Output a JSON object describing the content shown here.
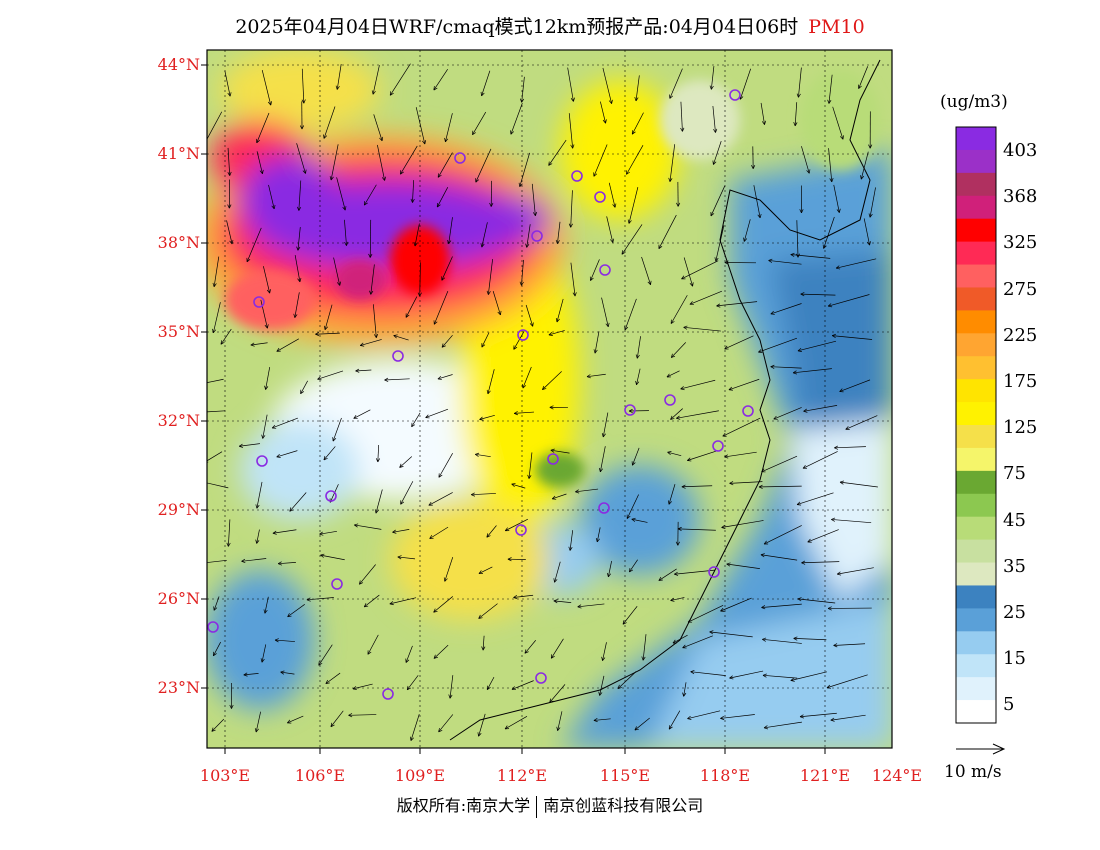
{
  "title": {
    "main": "2025年04月04日WRF/cmaq模式12km预报产品:04月04日06时",
    "pollutant": "PM10"
  },
  "axes": {
    "lat_labels": [
      "44°N",
      "41°N",
      "38°N",
      "35°N",
      "32°N",
      "29°N",
      "26°N",
      "23°N"
    ],
    "lon_labels": [
      "103°E",
      "106°E",
      "109°E",
      "112°E",
      "115°E",
      "118°E",
      "121°E",
      "124°E"
    ]
  },
  "colorbar": {
    "unit": "(ug/m3)",
    "labels": [
      "403",
      "368",
      "325",
      "275",
      "225",
      "175",
      "125",
      "75",
      "45",
      "35",
      "25",
      "15",
      "5"
    ],
    "colors": [
      "#8a2be2",
      "#9b30c8",
      "#b03060",
      "#d0207a",
      "#ff0000",
      "#ff2a55",
      "#ff6060",
      "#f05a28",
      "#ff8c00",
      "#ffa531",
      "#ffc030",
      "#ffe400",
      "#fff200",
      "#f5e04a",
      "#f5f56a",
      "#6aa832",
      "#8cc850",
      "#b8dc78",
      "#c8e0a0",
      "#dde8c0",
      "#3c82c0",
      "#5aa0d8",
      "#96ccf0",
      "#c0e4f8",
      "#e0f2fc",
      "#ffffff"
    ]
  },
  "wind_legend": {
    "label": "10 m/s"
  },
  "copyright": {
    "left": "版权所有:南京大学",
    "right": "南京创蓝科技有限公司"
  }
}
